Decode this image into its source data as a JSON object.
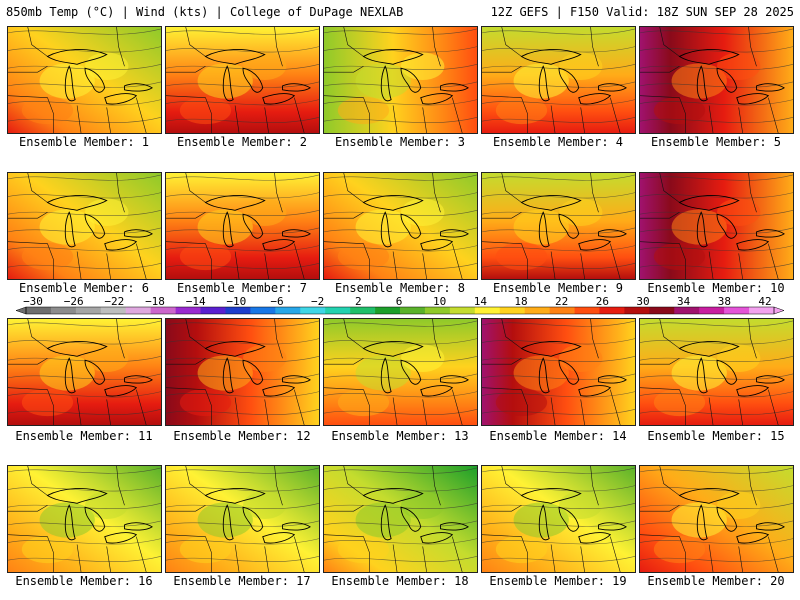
{
  "header": {
    "left": "850mb Temp (°C) | Wind (kts) | College of DuPage NEXLAB",
    "right": "12Z GEFS | F150 Valid: 18Z SUN SEP 28 2025"
  },
  "members": [
    {
      "label": "Ensemble Member: 1",
      "mean_temp_c": 8,
      "warm_side": "south-west"
    },
    {
      "label": "Ensemble Member: 2",
      "mean_temp_c": 11,
      "warm_side": "south"
    },
    {
      "label": "Ensemble Member: 3",
      "mean_temp_c": 7,
      "warm_side": "east"
    },
    {
      "label": "Ensemble Member: 4",
      "mean_temp_c": 9,
      "warm_side": "south"
    },
    {
      "label": "Ensemble Member: 5",
      "mean_temp_c": 15,
      "warm_side": "west"
    },
    {
      "label": "Ensemble Member: 6",
      "mean_temp_c": 8,
      "warm_side": "south-west"
    },
    {
      "label": "Ensemble Member: 7",
      "mean_temp_c": 11,
      "warm_side": "south"
    },
    {
      "label": "Ensemble Member: 8",
      "mean_temp_c": 8,
      "warm_side": "south-west"
    },
    {
      "label": "Ensemble Member: 9",
      "mean_temp_c": 10,
      "warm_side": "south"
    },
    {
      "label": "Ensemble Member: 10",
      "mean_temp_c": 15,
      "warm_side": "west"
    },
    {
      "label": "Ensemble Member: 11",
      "mean_temp_c": 11,
      "warm_side": "south"
    },
    {
      "label": "Ensemble Member: 12",
      "mean_temp_c": 13,
      "warm_side": "west"
    },
    {
      "label": "Ensemble Member: 13",
      "mean_temp_c": 7,
      "warm_side": "south"
    },
    {
      "label": "Ensemble Member: 14",
      "mean_temp_c": 14,
      "warm_side": "west"
    },
    {
      "label": "Ensemble Member: 15",
      "mean_temp_c": 9,
      "warm_side": "south"
    },
    {
      "label": "Ensemble Member: 16",
      "mean_temp_c": 5,
      "warm_side": "south-west"
    },
    {
      "label": "Ensemble Member: 17",
      "mean_temp_c": 5,
      "warm_side": "south-west"
    },
    {
      "label": "Ensemble Member: 18",
      "mean_temp_c": 4,
      "warm_side": "south-west"
    },
    {
      "label": "Ensemble Member: 19",
      "mean_temp_c": 5,
      "warm_side": "south-west"
    },
    {
      "label": "Ensemble Member: 20",
      "mean_temp_c": 9,
      "warm_side": "south-west"
    }
  ],
  "colorbar": {
    "ticks": [
      "−30",
      "−26",
      "−22",
      "−18",
      "−14",
      "−10",
      "−6",
      "−2",
      "2",
      "6",
      "10",
      "14",
      "18",
      "22",
      "26",
      "30",
      "34",
      "38",
      "42"
    ],
    "colors": [
      "#6e6e6e",
      "#8c8c8c",
      "#a5a5a5",
      "#bebebe",
      "#dfa8df",
      "#cc66cc",
      "#9a2bd0",
      "#5a20d0",
      "#1e3ecc",
      "#1877e6",
      "#27a7e8",
      "#3fd6e6",
      "#22d2b0",
      "#1fbf6a",
      "#1c9f2a",
      "#5ab22a",
      "#8fca2a",
      "#c4dc2e",
      "#fff234",
      "#ffd21e",
      "#ffac18",
      "#ff8214",
      "#ff4e10",
      "#e61c10",
      "#b40e0e",
      "#8a0a1a",
      "#a0126e",
      "#c81ea0",
      "#e454d8",
      "#f3a2ef"
    ]
  }
}
